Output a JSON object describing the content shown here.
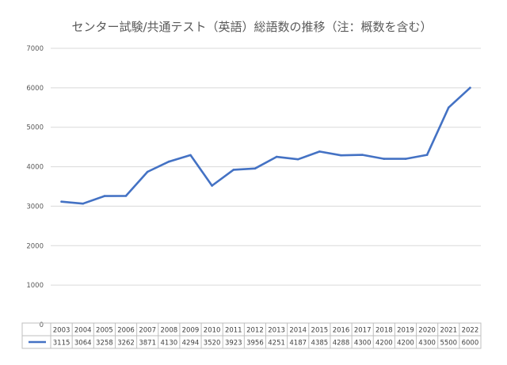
{
  "chart_data": {
    "type": "line",
    "title": "センター試験/共通テスト（英語）総語数の推移（注：概数を含む）",
    "categories": [
      "2003",
      "2004",
      "2005",
      "2006",
      "2007",
      "2008",
      "2009",
      "2010",
      "2011",
      "2012",
      "2013",
      "2014",
      "2015",
      "2016",
      "2017",
      "2018",
      "2019",
      "2020",
      "2021",
      "2022"
    ],
    "series": [
      {
        "values": [
          3115,
          3064,
          3258,
          3262,
          3871,
          4130,
          4294,
          3520,
          3923,
          3956,
          4251,
          4187,
          4385,
          4288,
          4300,
          4200,
          4200,
          4300,
          5500,
          6000
        ],
        "color": "#4472c4"
      }
    ],
    "yticks": [
      0,
      1000,
      2000,
      3000,
      4000,
      5000,
      6000,
      7000
    ],
    "ylim": [
      0,
      7000
    ],
    "grid": true,
    "data_table": true
  }
}
